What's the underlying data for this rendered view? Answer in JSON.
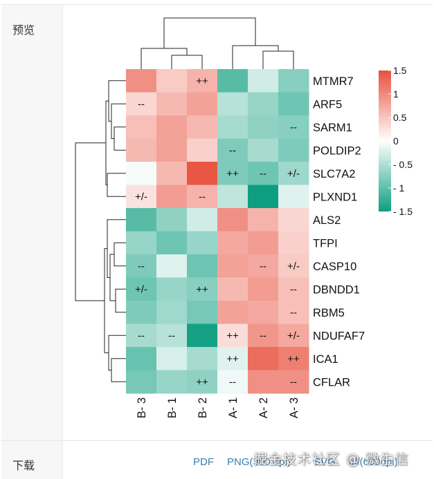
{
  "section_labels": {
    "preview": "预览",
    "download": "下载"
  },
  "downloads": [
    "PDF",
    "PNG(300 dpi)",
    "SVG",
    "tiff(600dpi)"
  ],
  "watermark": "掘金技术社区 @ 微生信",
  "colors": {
    "low": "#0f9e80",
    "mid": "#ffffff",
    "high": "#e8503e"
  },
  "chart_data": {
    "type": "heatmap",
    "columns": [
      "B-3",
      "B-1",
      "B-2",
      "A-1",
      "A-2",
      "A-3"
    ],
    "rows": [
      "MTMR7",
      "ARF5",
      "SARM1",
      "POLDIP2",
      "SLC7A2",
      "PLXND1",
      "ALS2",
      "TFPI",
      "CASP10",
      "DBNDD1",
      "RBM5",
      "NDUFAF7",
      "ICA1",
      "CFLAR"
    ],
    "values": [
      [
        0.95,
        0.45,
        0.65,
        -1.05,
        -0.3,
        -0.75
      ],
      [
        0.35,
        0.6,
        0.8,
        -0.45,
        -0.65,
        -0.9
      ],
      [
        0.55,
        0.8,
        0.6,
        -0.55,
        -0.7,
        -0.75
      ],
      [
        0.6,
        0.8,
        0.4,
        -0.8,
        -0.55,
        -0.8
      ],
      [
        -0.05,
        0.6,
        1.45,
        -0.8,
        -0.9,
        -0.6
      ],
      [
        0.25,
        0.85,
        0.65,
        -0.4,
        -1.5,
        -0.2
      ],
      [
        -1.05,
        -0.7,
        -0.3,
        0.95,
        0.65,
        0.35
      ],
      [
        -0.65,
        -0.9,
        -0.65,
        0.75,
        0.85,
        0.4
      ],
      [
        -0.8,
        -0.2,
        -0.9,
        0.8,
        0.75,
        0.45
      ],
      [
        -0.9,
        -0.65,
        -0.75,
        0.6,
        0.85,
        0.55
      ],
      [
        -0.8,
        -0.6,
        -0.85,
        0.8,
        0.75,
        0.55
      ],
      [
        -0.55,
        -0.45,
        -1.45,
        0.3,
        0.9,
        0.75
      ],
      [
        -0.95,
        -0.25,
        -0.55,
        -0.2,
        1.25,
        1.1
      ],
      [
        -0.85,
        -0.65,
        -0.7,
        -0.1,
        0.95,
        0.95
      ]
    ],
    "annotations": [
      [
        "",
        "",
        "++",
        "",
        "",
        ""
      ],
      [
        "--",
        "",
        "",
        "",
        "",
        ""
      ],
      [
        "",
        "",
        "",
        "",
        "",
        "--"
      ],
      [
        "",
        "",
        "",
        "--",
        "",
        ""
      ],
      [
        "",
        "",
        "",
        "++",
        "--",
        "+/-"
      ],
      [
        "+/-",
        "",
        "--",
        "",
        "",
        ""
      ],
      [
        "",
        "",
        "",
        "",
        "",
        ""
      ],
      [
        "",
        "",
        "",
        "",
        "",
        ""
      ],
      [
        "--",
        "",
        "",
        "",
        "--",
        "+/-"
      ],
      [
        "+/-",
        "",
        "++",
        "",
        "",
        "--"
      ],
      [
        "",
        "",
        "",
        "",
        "",
        "--"
      ],
      [
        "--",
        "--",
        "",
        "++",
        "--",
        "+/-"
      ],
      [
        "",
        "",
        "",
        "++",
        "",
        "++"
      ],
      [
        "",
        "",
        "++",
        "--",
        "",
        "--"
      ]
    ],
    "legend": {
      "range": [
        -1.5,
        1.5
      ],
      "tick_values": [
        1.5,
        1,
        0.5,
        0,
        -0.5,
        -1,
        -1.5
      ],
      "tick_labels": [
        "1.5",
        "1",
        "0.5",
        "0",
        "- 0.5",
        "- 1",
        "- 1.5"
      ]
    },
    "column_labels_display": [
      "B- 3",
      "B- 1",
      "B- 2",
      "A- 1",
      "A- 2",
      "A- 3"
    ]
  }
}
